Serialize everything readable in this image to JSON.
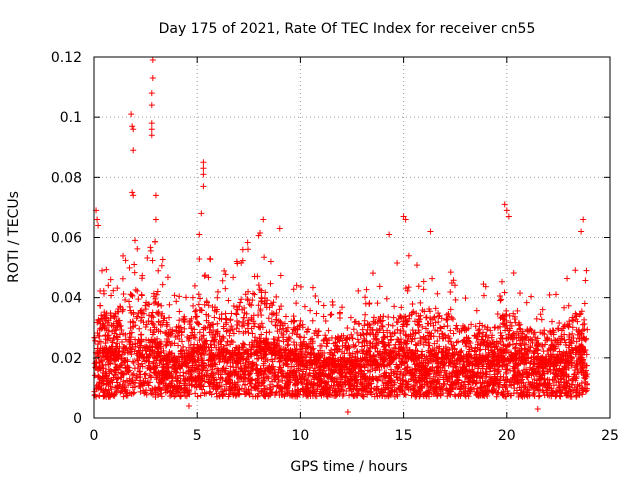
{
  "chart_data": {
    "type": "scatter",
    "title": "Day 175 of 2021, Rate Of TEC Index for receiver cn55",
    "xlabel": "GPS time / hours",
    "ylabel": "ROTI / TECUs",
    "xlim": [
      0,
      25
    ],
    "ylim": [
      0,
      0.12
    ],
    "xticks": [
      0,
      5,
      10,
      15,
      20,
      25
    ],
    "yticks": [
      0,
      0.02,
      0.04,
      0.06,
      0.08,
      0.1,
      0.12
    ],
    "grid": true,
    "marker": "+",
    "color": "#ff0000",
    "series": [
      {
        "name": "ROTI",
        "profile": {
          "x": [
            0,
            0.5,
            1,
            1.5,
            2,
            2.5,
            3,
            3.5,
            4,
            4.5,
            5,
            5.5,
            6,
            6.5,
            7,
            7.5,
            8,
            8.5,
            9,
            9.5,
            10,
            10.5,
            11,
            11.5,
            12,
            12.5,
            13,
            13.5,
            14,
            14.5,
            15,
            15.5,
            16,
            16.5,
            17,
            17.5,
            18,
            18.5,
            19,
            19.5,
            20,
            20.5,
            21,
            21.5,
            22,
            22.5,
            23,
            23.5,
            24
          ],
          "median": [
            0.018,
            0.02,
            0.019,
            0.02,
            0.022,
            0.021,
            0.022,
            0.018,
            0.017,
            0.018,
            0.02,
            0.021,
            0.02,
            0.019,
            0.02,
            0.021,
            0.022,
            0.021,
            0.02,
            0.019,
            0.018,
            0.018,
            0.017,
            0.017,
            0.016,
            0.016,
            0.017,
            0.018,
            0.019,
            0.019,
            0.02,
            0.019,
            0.018,
            0.018,
            0.019,
            0.018,
            0.018,
            0.018,
            0.017,
            0.018,
            0.019,
            0.018,
            0.018,
            0.017,
            0.017,
            0.018,
            0.018,
            0.02,
            0.02
          ],
          "upper": [
            0.045,
            0.05,
            0.048,
            0.055,
            0.06,
            0.055,
            0.058,
            0.048,
            0.045,
            0.048,
            0.052,
            0.055,
            0.05,
            0.05,
            0.055,
            0.056,
            0.06,
            0.055,
            0.05,
            0.045,
            0.045,
            0.042,
            0.04,
            0.04,
            0.038,
            0.04,
            0.042,
            0.048,
            0.05,
            0.048,
            0.055,
            0.05,
            0.05,
            0.048,
            0.05,
            0.045,
            0.042,
            0.045,
            0.042,
            0.045,
            0.05,
            0.045,
            0.042,
            0.04,
            0.04,
            0.042,
            0.045,
            0.05,
            0.05
          ]
        },
        "outliers": [
          {
            "x": 0.1,
            "y": 0.069
          },
          {
            "x": 0.15,
            "y": 0.066
          },
          {
            "x": 0.2,
            "y": 0.064
          },
          {
            "x": 1.8,
            "y": 0.101
          },
          {
            "x": 1.85,
            "y": 0.097
          },
          {
            "x": 1.9,
            "y": 0.096
          },
          {
            "x": 1.9,
            "y": 0.089
          },
          {
            "x": 1.85,
            "y": 0.075
          },
          {
            "x": 1.9,
            "y": 0.074
          },
          {
            "x": 2.85,
            "y": 0.119
          },
          {
            "x": 2.85,
            "y": 0.113
          },
          {
            "x": 2.8,
            "y": 0.108
          },
          {
            "x": 2.8,
            "y": 0.104
          },
          {
            "x": 2.8,
            "y": 0.098
          },
          {
            "x": 2.8,
            "y": 0.096
          },
          {
            "x": 2.8,
            "y": 0.094
          },
          {
            "x": 3.0,
            "y": 0.074
          },
          {
            "x": 3.0,
            "y": 0.066
          },
          {
            "x": 5.3,
            "y": 0.085
          },
          {
            "x": 5.3,
            "y": 0.083
          },
          {
            "x": 5.3,
            "y": 0.081
          },
          {
            "x": 5.3,
            "y": 0.077
          },
          {
            "x": 5.2,
            "y": 0.068
          },
          {
            "x": 5.1,
            "y": 0.061
          },
          {
            "x": 8.2,
            "y": 0.066
          },
          {
            "x": 9.0,
            "y": 0.063
          },
          {
            "x": 14.3,
            "y": 0.061
          },
          {
            "x": 15.0,
            "y": 0.067
          },
          {
            "x": 15.1,
            "y": 0.066
          },
          {
            "x": 16.3,
            "y": 0.062
          },
          {
            "x": 19.9,
            "y": 0.071
          },
          {
            "x": 20.0,
            "y": 0.069
          },
          {
            "x": 20.1,
            "y": 0.067
          },
          {
            "x": 23.7,
            "y": 0.066
          },
          {
            "x": 23.6,
            "y": 0.062
          },
          {
            "x": 12.3,
            "y": 0.002
          },
          {
            "x": 21.5,
            "y": 0.003
          },
          {
            "x": 4.6,
            "y": 0.004
          }
        ]
      }
    ]
  }
}
